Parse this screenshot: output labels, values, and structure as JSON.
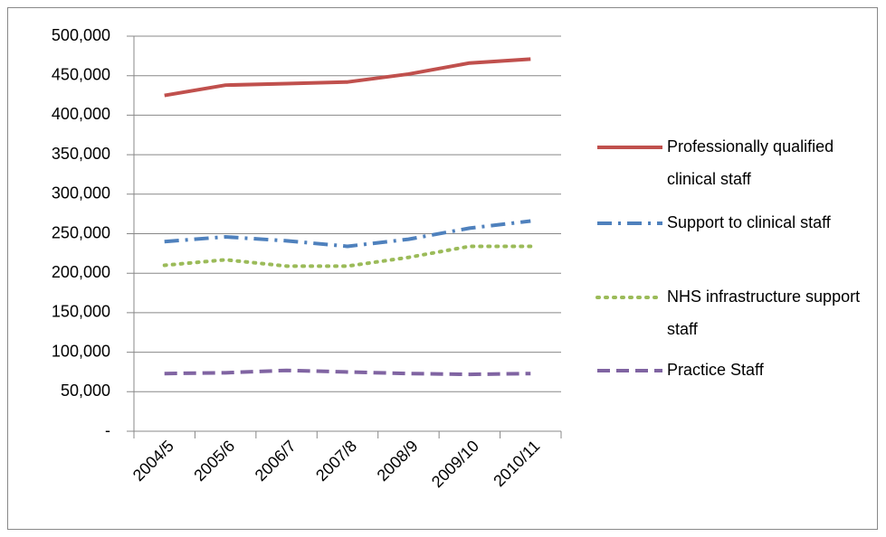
{
  "chart_data": {
    "type": "line",
    "categories": [
      "2004/5",
      "2005/6",
      "2006/7",
      "2007/8",
      "2008/9",
      "2009/10",
      "2010/11"
    ],
    "series": [
      {
        "name": "Professionally qualified clinical staff",
        "color": "#c0504d",
        "values": [
          425000,
          438000,
          440000,
          442000,
          452000,
          466000,
          471000
        ]
      },
      {
        "name": "Support to clinical staff",
        "color": "#4f81bd",
        "values": [
          240000,
          246000,
          241000,
          234000,
          243000,
          257000,
          266000
        ]
      },
      {
        "name": "NHS infrastructure support staff",
        "color": "#9bbb59",
        "values": [
          210000,
          217000,
          209000,
          209000,
          220000,
          234000,
          234000
        ]
      },
      {
        "name": "Practice Staff",
        "color": "#8064a2",
        "values": [
          73000,
          74000,
          77000,
          75000,
          73000,
          72000,
          73000
        ]
      }
    ],
    "ylim": [
      0,
      500000
    ],
    "yticks": [
      {
        "value": 0,
        "label": "-"
      },
      {
        "value": 50000,
        "label": "50,000"
      },
      {
        "value": 100000,
        "label": "100,000"
      },
      {
        "value": 150000,
        "label": "150,000"
      },
      {
        "value": 200000,
        "label": "200,000"
      },
      {
        "value": 250000,
        "label": "250,000"
      },
      {
        "value": 300000,
        "label": "300,000"
      },
      {
        "value": 350000,
        "label": "350,000"
      },
      {
        "value": 400000,
        "label": "400,000"
      },
      {
        "value": 450000,
        "label": "450,000"
      },
      {
        "value": 500000,
        "label": "500,000"
      }
    ],
    "grid": true,
    "legend": "right"
  }
}
